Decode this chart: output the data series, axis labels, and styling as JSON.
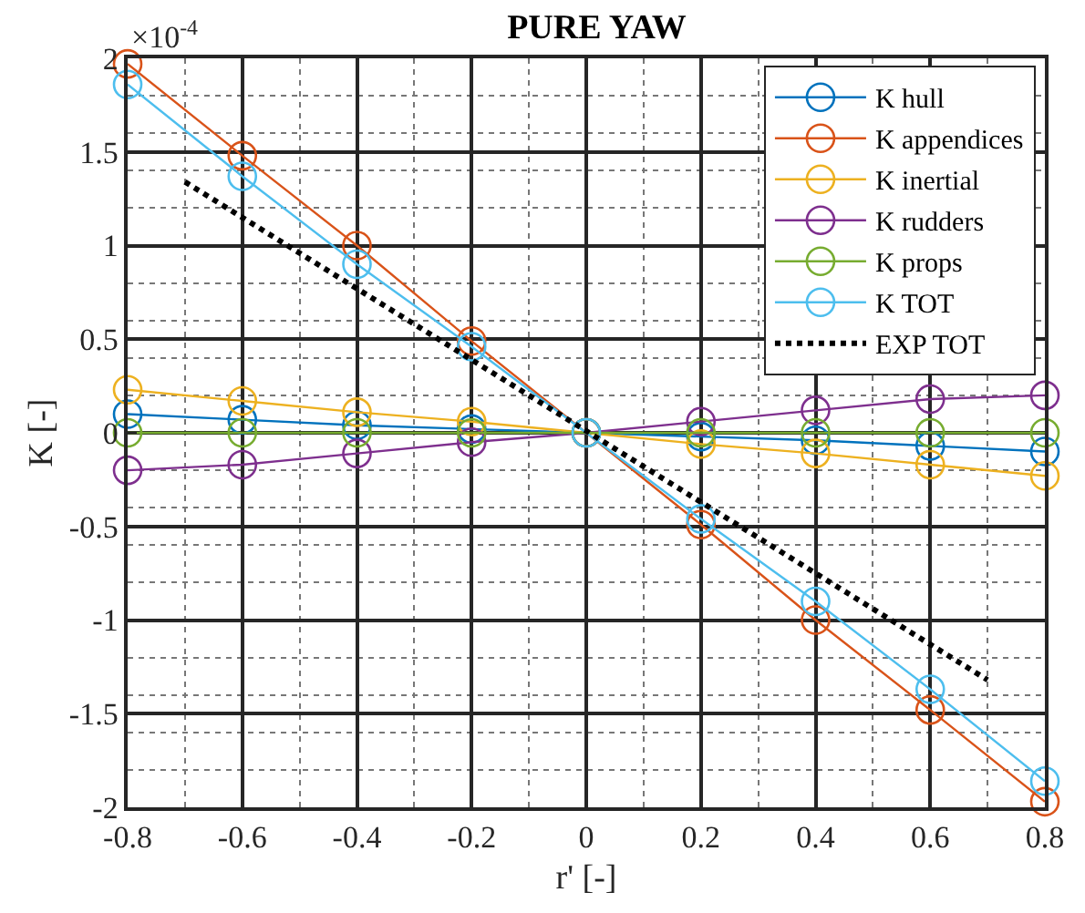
{
  "chart_data": {
    "type": "line",
    "title": "PURE YAW",
    "xlabel": "r' [-]",
    "ylabel": "K [-]",
    "annotations": [
      "×10$^{-4}$"
    ],
    "xlim": [
      -0.8,
      0.8
    ],
    "xticks": [
      -0.8,
      -0.6,
      -0.4,
      -0.2,
      0,
      0.2,
      0.4,
      0.6,
      0.8
    ],
    "ylim": [
      -2,
      2
    ],
    "yticks": [
      -2,
      -1.5,
      -1,
      -0.5,
      0,
      0.5,
      1,
      1.5,
      2
    ],
    "grid": true,
    "legend": "top right",
    "marker": "circle",
    "line_style": "solid",
    "x": [
      -0.8,
      -0.6,
      -0.4,
      -0.2,
      0,
      0.2,
      0.4,
      0.6,
      0.8
    ],
    "series": [
      {
        "name": "K hull",
        "color": "#0072bd",
        "values": [
          0.1,
          0.07,
          0.04,
          0.02,
          0,
          -0.02,
          -0.04,
          -0.07,
          -0.1
        ]
      },
      {
        "name": "K appendices",
        "color": "#d95319",
        "values": [
          1.97,
          1.48,
          1.0,
          0.49,
          0,
          -0.49,
          -1.0,
          -1.48,
          -1.97
        ]
      },
      {
        "name": "K inertial",
        "color": "#edb120",
        "values": [
          0.23,
          0.17,
          0.11,
          0.06,
          0,
          -0.06,
          -0.11,
          -0.17,
          -0.23
        ]
      },
      {
        "name": "K rudders",
        "color": "#7e2f8e",
        "values": [
          -0.2,
          -0.17,
          -0.11,
          -0.05,
          0,
          0.06,
          0.12,
          0.18,
          0.2
        ]
      },
      {
        "name": "K props",
        "color": "#77ac30",
        "values": [
          0,
          0,
          0,
          0,
          0,
          0,
          0,
          0,
          0
        ]
      },
      {
        "name": "K TOT",
        "color": "#4dbeee",
        "values": [
          1.86,
          1.37,
          0.9,
          0.46,
          0,
          -0.46,
          -0.9,
          -1.37,
          -1.86
        ]
      },
      {
        "name": "EXP TOT",
        "color": "#000000",
        "x": [
          -0.7,
          0.7
        ],
        "values": [
          1.34,
          -1.32
        ],
        "marker": "none",
        "line_style": "dotted"
      }
    ]
  }
}
